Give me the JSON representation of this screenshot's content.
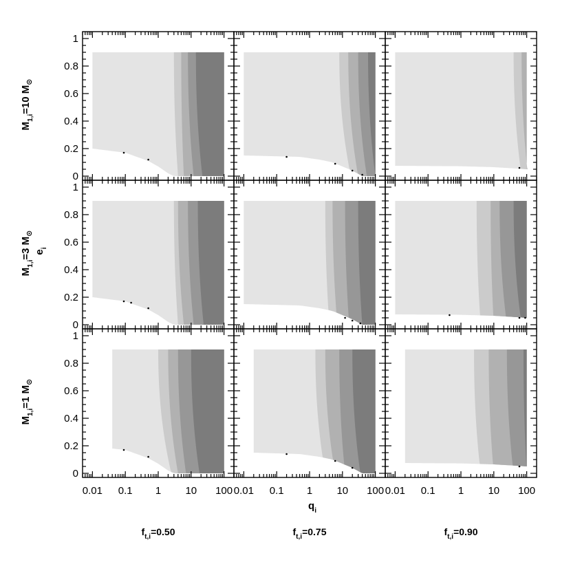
{
  "chart_data": {
    "type": "area",
    "description_free": true,
    "x_axis": {
      "label": "q_i",
      "label_main": "q",
      "label_sub": "i",
      "scale": "log",
      "range": [
        0.005,
        200
      ],
      "ticks": [
        0.01,
        0.1,
        1,
        10,
        100
      ],
      "tick_labels": [
        "0.01",
        "0.1",
        "1",
        "10",
        "100"
      ]
    },
    "y_axis": {
      "label": "e_i",
      "label_main": "e",
      "label_sub": "i",
      "range": [
        -0.03,
        1.05
      ],
      "ticks": [
        0,
        0.2,
        0.4,
        0.6,
        0.8,
        1
      ],
      "tick_labels": [
        "0",
        "0.2",
        "0.4",
        "0.6",
        "0.8",
        "1"
      ]
    },
    "region_fills": [
      "#e4e4e4",
      "#cbcbcb",
      "#b1b1b1",
      "#979797",
      "#7c7c7c"
    ],
    "row_labels": [
      {
        "main": "M",
        "sub": "1,i",
        "rest": "=10 M",
        "sym": "⊙"
      },
      {
        "main": "M",
        "sub": "1,i",
        "rest": "=3 M",
        "sym": "⊙"
      },
      {
        "main": "M",
        "sub": "1,i",
        "rest": "=1 M",
        "sym": "⊙"
      }
    ],
    "column_labels": [
      {
        "main": "f",
        "sub": "t,i",
        "rest": "=0.50"
      },
      {
        "main": "f",
        "sub": "t,i",
        "rest": "=0.75"
      },
      {
        "main": "f",
        "sub": "t,i",
        "rest": "=0.90"
      }
    ],
    "panels": [
      [
        {
          "xmin": 0.01,
          "emax": 0.9,
          "floor": [
            [
              0.01,
              0.2
            ],
            [
              0.1,
              0.17
            ],
            [
              0.5,
              0.11
            ],
            [
              1,
              0.07
            ],
            [
              2,
              0.02
            ],
            [
              3,
              0.0
            ],
            [
              100,
              0.0
            ]
          ],
          "bands": [
            [
              3,
              4
            ],
            [
              5,
              6
            ],
            [
              8,
              12
            ],
            [
              14,
              22
            ],
            [
              30,
              60
            ]
          ],
          "dots": [
            [
              0.09,
              0.17
            ],
            [
              0.5,
              0.12
            ]
          ]
        },
        {
          "xmin": 0.01,
          "emax": 0.9,
          "floor": [
            [
              0.01,
              0.15
            ],
            [
              0.5,
              0.14
            ],
            [
              2,
              0.12
            ],
            [
              5,
              0.1
            ],
            [
              10,
              0.07
            ],
            [
              20,
              0.04
            ],
            [
              40,
              0.0
            ],
            [
              100,
              0.0
            ]
          ],
          "bands": [
            [
              8,
              18
            ],
            [
              15,
              30
            ],
            [
              30,
              55
            ],
            [
              60,
              100
            ]
          ],
          "dots": [
            [
              0.2,
              0.14
            ],
            [
              6,
              0.09
            ],
            [
              20,
              0.04
            ],
            [
              40,
              0.01
            ]
          ]
        },
        {
          "xmin": 0.01,
          "emax": 0.9,
          "floor": [
            [
              0.01,
              0.075
            ],
            [
              1,
              0.072
            ],
            [
              10,
              0.065
            ],
            [
              50,
              0.055
            ],
            [
              100,
              0.05
            ]
          ],
          "bands": [
            [
              40,
              70
            ],
            [
              70,
              110
            ]
          ],
          "dots": [
            [
              60,
              0.06
            ]
          ]
        }
      ],
      [
        {
          "xmin": 0.01,
          "emax": 0.9,
          "floor": [
            [
              0.01,
              0.2
            ],
            [
              0.1,
              0.17
            ],
            [
              0.5,
              0.11
            ],
            [
              1,
              0.07
            ],
            [
              2,
              0.02
            ],
            [
              3,
              0.0
            ],
            [
              100,
              0.0
            ]
          ],
          "bands": [
            [
              3,
              4
            ],
            [
              4,
              6
            ],
            [
              8,
              12
            ],
            [
              16,
              24
            ],
            [
              70,
              100
            ]
          ],
          "dots": [
            [
              0.09,
              0.17
            ],
            [
              0.15,
              0.16
            ],
            [
              0.5,
              0.12
            ]
          ]
        },
        {
          "xmin": 0.01,
          "emax": 0.9,
          "floor": [
            [
              0.01,
              0.15
            ],
            [
              0.5,
              0.14
            ],
            [
              2,
              0.12
            ],
            [
              5,
              0.1
            ],
            [
              10,
              0.07
            ],
            [
              20,
              0.04
            ],
            [
              40,
              0.0
            ],
            [
              100,
              0.0
            ]
          ],
          "bands": [
            [
              3,
              4
            ],
            [
              5,
              7
            ],
            [
              12,
              16
            ],
            [
              30,
              40
            ]
          ],
          "dots": [
            [
              12,
              0.05
            ],
            [
              20,
              0.03
            ],
            [
              35,
              0.01
            ]
          ]
        },
        {
          "xmin": 0.01,
          "emax": 0.9,
          "floor": [
            [
              0.01,
              0.075
            ],
            [
              1,
              0.072
            ],
            [
              10,
              0.065
            ],
            [
              50,
              0.055
            ],
            [
              100,
              0.05
            ]
          ],
          "bands": [
            [
              3,
              4
            ],
            [
              8,
              10
            ],
            [
              15,
              25
            ],
            [
              40,
              70
            ]
          ],
          "dots": [
            [
              0.45,
              0.07
            ],
            [
              60,
              0.05
            ],
            [
              90,
              0.05
            ]
          ]
        }
      ],
      [
        {
          "xmin": 0.04,
          "emax": 0.9,
          "floor": [
            [
              0.04,
              0.18
            ],
            [
              0.1,
              0.17
            ],
            [
              0.5,
              0.11
            ],
            [
              1,
              0.07
            ],
            [
              2,
              0.02
            ],
            [
              3,
              0.0
            ],
            [
              100,
              0.0
            ]
          ],
          "bands": [
            [
              1,
              2.5
            ],
            [
              2,
              4
            ],
            [
              4,
              7
            ],
            [
              10,
              18
            ],
            [
              30,
              60
            ]
          ],
          "dots": [
            [
              0.09,
              0.17
            ],
            [
              0.5,
              0.12
            ]
          ]
        },
        {
          "xmin": 0.02,
          "emax": 0.9,
          "floor": [
            [
              0.02,
              0.15
            ],
            [
              0.5,
              0.14
            ],
            [
              2,
              0.12
            ],
            [
              5,
              0.1
            ],
            [
              10,
              0.07
            ],
            [
              20,
              0.04
            ],
            [
              40,
              0.0
            ],
            [
              100,
              0.0
            ]
          ],
          "bands": [
            [
              1.5,
              3
            ],
            [
              3,
              6
            ],
            [
              8,
              12
            ],
            [
              20,
              35
            ]
          ],
          "dots": [
            [
              0.2,
              0.14
            ],
            [
              6,
              0.09
            ],
            [
              20,
              0.04
            ]
          ]
        },
        {
          "xmin": 0.02,
          "emax": 0.9,
          "floor": [
            [
              0.02,
              0.075
            ],
            [
              1,
              0.072
            ],
            [
              10,
              0.065
            ],
            [
              50,
              0.055
            ],
            [
              100,
              0.05
            ]
          ],
          "bands": [
            [
              2.5,
              4
            ],
            [
              7,
              10
            ],
            [
              25,
              40
            ],
            [
              80,
              100
            ]
          ],
          "dots": [
            [
              60,
              0.05
            ]
          ]
        }
      ]
    ]
  }
}
